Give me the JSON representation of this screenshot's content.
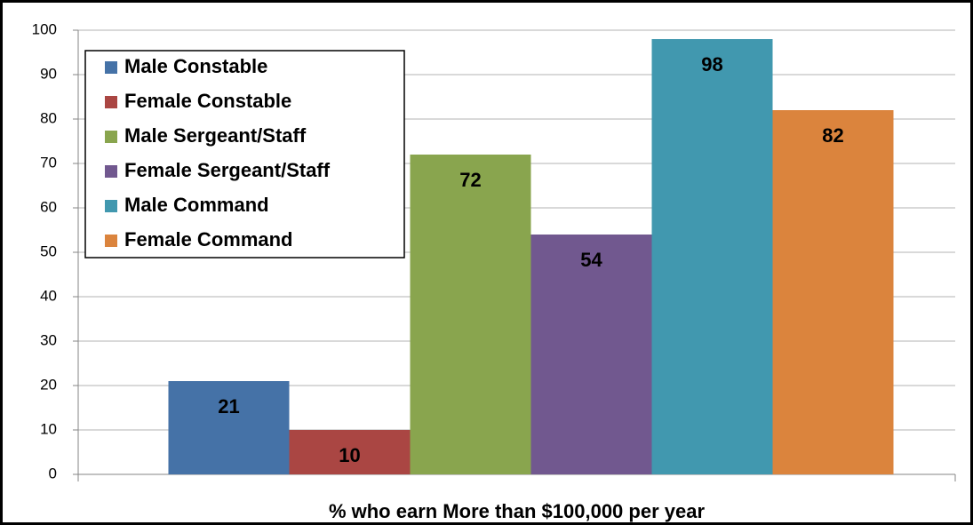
{
  "chart_data": {
    "type": "bar",
    "categories": [
      "% who earn More than $100,000 per year"
    ],
    "series": [
      {
        "name": "Male Constable",
        "color": "#4572a7",
        "values": [
          21
        ]
      },
      {
        "name": "Female Constable",
        "color": "#aa4643",
        "values": [
          10
        ]
      },
      {
        "name": "Male Sergeant/Staff",
        "color": "#89a54e",
        "values": [
          72
        ]
      },
      {
        "name": "Female Sergeant/Staff",
        "color": "#71588f",
        "values": [
          54
        ]
      },
      {
        "name": "Male Command",
        "color": "#4198af",
        "values": [
          98
        ]
      },
      {
        "name": "Female Command",
        "color": "#db843d",
        "values": [
          82
        ]
      }
    ],
    "ylim": [
      0,
      100
    ],
    "yticks": [
      0,
      10,
      20,
      30,
      40,
      50,
      60,
      70,
      80,
      90,
      100
    ],
    "grid": true,
    "legend": "upper left"
  }
}
